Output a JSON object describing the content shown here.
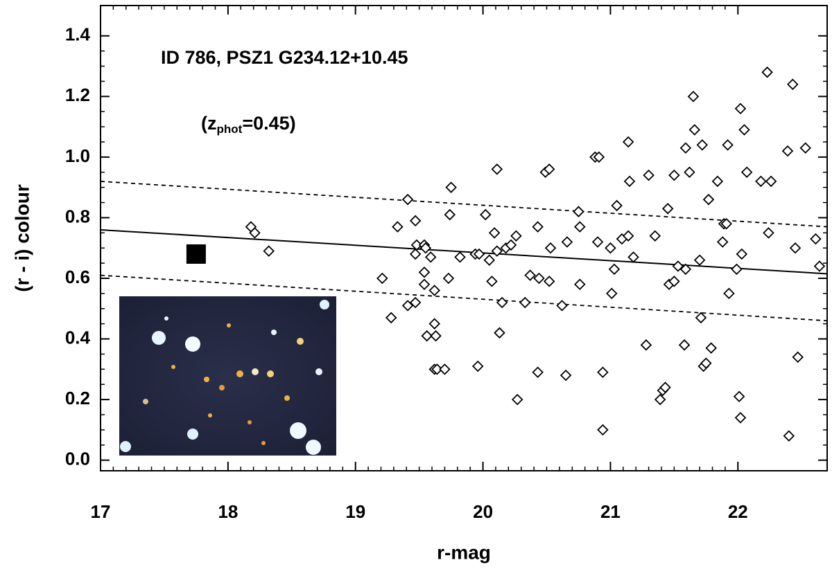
{
  "chart_data": {
    "type": "scatter",
    "title": "ID 786, PSZ1 G234.12+10.45",
    "annotation_parts": [
      "(z",
      "phot",
      "=0.45)"
    ],
    "x_label": "r-mag",
    "y_label": "(r - i) colour",
    "xlim": [
      17,
      22.7
    ],
    "ylim": [
      -0.035,
      1.5
    ],
    "xticks": [
      17,
      18,
      19,
      20,
      21,
      22
    ],
    "yticks": [
      {
        "value": 0,
        "label": "0.0"
      },
      0.2,
      0.4,
      0.6,
      0.8,
      {
        "value": 1,
        "label": "1.0"
      },
      1.2,
      1.4
    ],
    "color": "#000000",
    "x": [
      18.18,
      18.21,
      18.32,
      19.21,
      19.28,
      19.33,
      19.41,
      19.41,
      19.47,
      19.47,
      19.48,
      19.47,
      19.54,
      19.55,
      19.54,
      19.54,
      19.56,
      19.59,
      19.62,
      19.62,
      19.63,
      19.62,
      19.64,
      19.7,
      19.73,
      19.74,
      19.75,
      19.82,
      19.94,
      19.96,
      19.97,
      20.02,
      20.05,
      20.07,
      20.09,
      20.11,
      20.11,
      20.13,
      20.15,
      20.18,
      20.22,
      20.26,
      20.27,
      20.33,
      20.37,
      20.43,
      20.43,
      20.44,
      20.49,
      20.52,
      20.52,
      20.53,
      20.62,
      20.65,
      20.66,
      20.75,
      20.76,
      20.76,
      20.88,
      20.91,
      20.9,
      20.94,
      20.94,
      21.0,
      21.01,
      21.03,
      21.05,
      21.09,
      21.14,
      21.14,
      21.15,
      21.18,
      21.28,
      21.3,
      21.35,
      21.39,
      21.41,
      21.43,
      21.45,
      21.46,
      21.5,
      21.5,
      21.53,
      21.58,
      21.59,
      21.59,
      21.62,
      21.65,
      21.66,
      21.7,
      21.71,
      21.72,
      21.73,
      21.75,
      21.77,
      21.79,
      21.84,
      21.88,
      21.89,
      21.91,
      21.92,
      21.93,
      21.99,
      22.01,
      22.02,
      22.03,
      22.02,
      22.05,
      22.07,
      22.18,
      22.23,
      22.24,
      22.26,
      22.39,
      22.4,
      22.43,
      22.45,
      22.47,
      22.53,
      22.61,
      22.64
    ],
    "y": [
      0.77,
      0.75,
      0.69,
      0.6,
      0.47,
      0.77,
      0.86,
      0.51,
      0.79,
      0.52,
      0.71,
      0.68,
      0.71,
      0.7,
      0.62,
      0.58,
      0.41,
      0.67,
      0.56,
      0.45,
      0.41,
      0.3,
      0.3,
      0.3,
      0.6,
      0.81,
      0.9,
      0.67,
      0.68,
      0.31,
      0.68,
      0.81,
      0.66,
      0.59,
      0.75,
      0.96,
      0.69,
      0.42,
      0.52,
      0.7,
      0.71,
      0.74,
      0.2,
      0.52,
      0.61,
      0.77,
      0.29,
      0.6,
      0.95,
      0.96,
      0.59,
      0.7,
      0.51,
      0.28,
      0.72,
      0.82,
      0.77,
      0.58,
      1.0,
      1.0,
      0.72,
      0.29,
      0.1,
      0.7,
      0.55,
      0.63,
      0.84,
      0.73,
      0.74,
      1.05,
      0.92,
      0.67,
      0.38,
      0.94,
      0.74,
      0.2,
      0.23,
      0.24,
      0.83,
      0.58,
      0.59,
      0.94,
      0.64,
      0.38,
      0.63,
      1.03,
      0.95,
      1.2,
      1.09,
      0.66,
      0.47,
      1.04,
      0.31,
      0.32,
      0.86,
      0.37,
      0.92,
      0.72,
      0.78,
      0.78,
      1.04,
      0.55,
      0.63,
      0.21,
      1.16,
      0.68,
      0.14,
      1.09,
      0.95,
      0.92,
      1.28,
      0.75,
      0.92,
      1.02,
      0.08,
      1.24,
      0.7,
      0.34,
      1.03,
      0.73,
      0.64
    ],
    "lines": [
      {
        "x": [
          17,
          22.7
        ],
        "y": [
          0.92,
          0.77
        ],
        "style": "dashed"
      },
      {
        "x": [
          17,
          22.7
        ],
        "y": [
          0.76,
          0.615
        ],
        "style": "solid"
      },
      {
        "x": [
          17,
          22.7
        ],
        "y": [
          0.61,
          0.46
        ],
        "style": "dashed"
      }
    ],
    "highlight": {
      "x": 17.75,
      "y": 0.68
    }
  }
}
